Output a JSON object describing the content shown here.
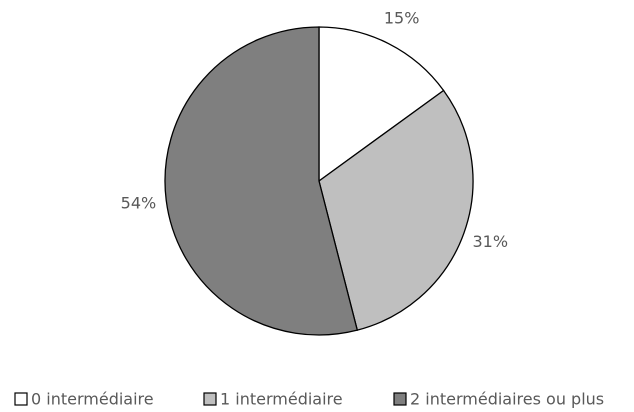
{
  "chart_data": {
    "type": "pie",
    "categories": [
      "0 intermédiaire",
      "1 intermédiaire",
      "2 intermédiaires ou plus"
    ],
    "values": [
      15,
      31,
      54
    ],
    "value_labels": [
      "15%",
      "31%",
      "54%"
    ],
    "colors": [
      "#ffffff",
      "#bfbfbf",
      "#7f7f7f"
    ],
    "legend": "bottom"
  }
}
